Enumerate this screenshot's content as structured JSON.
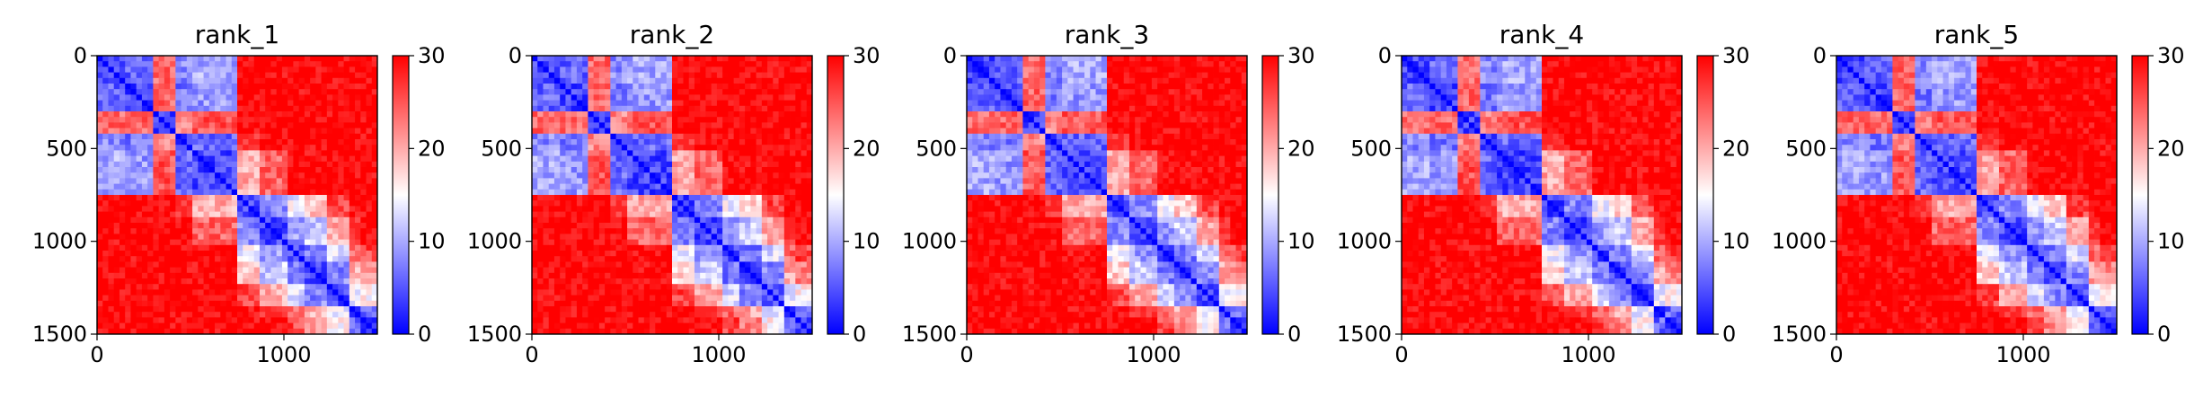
{
  "chart_data": [
    {
      "type": "heatmap",
      "title": "rank_1",
      "xlabel": "",
      "ylabel": "",
      "xlim": [
        0,
        1500
      ],
      "ylim": [
        1500,
        0
      ],
      "x_ticks": [
        "0",
        "1000"
      ],
      "y_ticks": [
        "0",
        "500",
        "1000",
        "1500"
      ],
      "colorbar": {
        "colormap": "bwr",
        "range": [
          0,
          30
        ],
        "ticks": [
          "0",
          "10",
          "20",
          "30"
        ]
      },
      "blocks": [
        [
          0,
          140
        ],
        [
          140,
          290
        ],
        [
          290,
          420
        ],
        [
          420,
          520
        ],
        [
          520,
          740
        ],
        [
          740,
          880
        ],
        [
          880,
          1010
        ],
        [
          1010,
          1120
        ],
        [
          1120,
          1230
        ],
        [
          1230,
          1340
        ],
        [
          1340,
          1420
        ],
        [
          1420,
          1500
        ]
      ],
      "block_distance_matrix": [
        [
          4,
          6,
          24,
          8,
          10,
          30,
          30,
          30,
          30,
          30,
          30,
          30
        ],
        [
          6,
          4,
          24,
          7,
          9,
          30,
          30,
          30,
          30,
          30,
          30,
          30
        ],
        [
          24,
          24,
          4,
          22,
          25,
          30,
          30,
          30,
          30,
          30,
          30,
          30
        ],
        [
          8,
          7,
          22,
          4,
          6,
          28,
          30,
          30,
          30,
          30,
          30,
          30
        ],
        [
          10,
          9,
          25,
          6,
          4,
          20,
          24,
          30,
          30,
          30,
          30,
          30
        ],
        [
          30,
          30,
          30,
          28,
          20,
          4,
          8,
          14,
          18,
          26,
          30,
          30
        ],
        [
          30,
          30,
          30,
          30,
          24,
          8,
          4,
          9,
          12,
          20,
          28,
          30
        ],
        [
          30,
          30,
          30,
          30,
          30,
          14,
          9,
          4,
          7,
          13,
          24,
          26
        ],
        [
          30,
          30,
          30,
          30,
          30,
          18,
          12,
          7,
          4,
          8,
          20,
          22
        ],
        [
          30,
          30,
          30,
          30,
          30,
          26,
          20,
          13,
          8,
          4,
          14,
          16
        ],
        [
          30,
          30,
          30,
          30,
          30,
          30,
          28,
          24,
          20,
          14,
          4,
          6
        ],
        [
          30,
          30,
          30,
          30,
          30,
          30,
          30,
          26,
          22,
          16,
          6,
          4
        ]
      ]
    },
    {
      "type": "heatmap",
      "title": "rank_2",
      "xlabel": "",
      "ylabel": "",
      "xlim": [
        0,
        1500
      ],
      "ylim": [
        1500,
        0
      ],
      "x_ticks": [
        "0",
        "1000"
      ],
      "y_ticks": [
        "0",
        "500",
        "1000",
        "1500"
      ],
      "colorbar": {
        "colormap": "bwr",
        "range": [
          0,
          30
        ],
        "ticks": [
          "0",
          "10",
          "20",
          "30"
        ]
      },
      "blocks": [
        [
          0,
          140
        ],
        [
          140,
          290
        ],
        [
          290,
          420
        ],
        [
          420,
          520
        ],
        [
          520,
          740
        ],
        [
          740,
          880
        ],
        [
          880,
          1010
        ],
        [
          1010,
          1120
        ],
        [
          1120,
          1230
        ],
        [
          1230,
          1340
        ],
        [
          1340,
          1420
        ],
        [
          1420,
          1500
        ]
      ],
      "block_distance_matrix": [
        [
          4,
          6,
          24,
          8,
          10,
          30,
          30,
          30,
          30,
          30,
          30,
          30
        ],
        [
          6,
          4,
          24,
          7,
          9,
          30,
          30,
          30,
          30,
          30,
          30,
          30
        ],
        [
          24,
          24,
          4,
          22,
          25,
          30,
          30,
          30,
          30,
          30,
          30,
          30
        ],
        [
          8,
          7,
          22,
          4,
          6,
          28,
          30,
          30,
          30,
          30,
          30,
          30
        ],
        [
          10,
          9,
          25,
          6,
          4,
          20,
          24,
          30,
          30,
          30,
          30,
          30
        ],
        [
          30,
          30,
          30,
          28,
          20,
          4,
          8,
          14,
          18,
          26,
          30,
          30
        ],
        [
          30,
          30,
          30,
          30,
          24,
          8,
          4,
          9,
          12,
          20,
          28,
          30
        ],
        [
          30,
          30,
          30,
          30,
          30,
          14,
          9,
          4,
          7,
          13,
          24,
          26
        ],
        [
          30,
          30,
          30,
          30,
          30,
          18,
          12,
          7,
          4,
          8,
          20,
          22
        ],
        [
          30,
          30,
          30,
          30,
          30,
          26,
          20,
          13,
          8,
          4,
          14,
          16
        ],
        [
          30,
          30,
          30,
          30,
          30,
          30,
          28,
          24,
          20,
          14,
          4,
          6
        ],
        [
          30,
          30,
          30,
          30,
          30,
          30,
          30,
          26,
          22,
          16,
          6,
          4
        ]
      ]
    },
    {
      "type": "heatmap",
      "title": "rank_3",
      "xlabel": "",
      "ylabel": "",
      "xlim": [
        0,
        1500
      ],
      "ylim": [
        1500,
        0
      ],
      "x_ticks": [
        "0",
        "1000"
      ],
      "y_ticks": [
        "0",
        "500",
        "1000",
        "1500"
      ],
      "colorbar": {
        "colormap": "bwr",
        "range": [
          0,
          30
        ],
        "ticks": [
          "0",
          "10",
          "20",
          "30"
        ]
      },
      "blocks": [
        [
          0,
          140
        ],
        [
          140,
          290
        ],
        [
          290,
          420
        ],
        [
          420,
          520
        ],
        [
          520,
          740
        ],
        [
          740,
          880
        ],
        [
          880,
          1010
        ],
        [
          1010,
          1120
        ],
        [
          1120,
          1230
        ],
        [
          1230,
          1340
        ],
        [
          1340,
          1420
        ],
        [
          1420,
          1500
        ]
      ],
      "block_distance_matrix": [
        [
          4,
          6,
          24,
          8,
          10,
          30,
          30,
          30,
          30,
          30,
          30,
          30
        ],
        [
          6,
          4,
          24,
          7,
          9,
          30,
          30,
          30,
          30,
          30,
          30,
          30
        ],
        [
          24,
          24,
          4,
          22,
          25,
          30,
          30,
          30,
          30,
          30,
          30,
          30
        ],
        [
          8,
          7,
          22,
          4,
          6,
          28,
          30,
          30,
          30,
          30,
          30,
          30
        ],
        [
          10,
          9,
          25,
          6,
          4,
          20,
          24,
          30,
          30,
          30,
          30,
          30
        ],
        [
          30,
          30,
          30,
          28,
          20,
          4,
          8,
          14,
          18,
          26,
          30,
          30
        ],
        [
          30,
          30,
          30,
          30,
          24,
          8,
          4,
          9,
          12,
          20,
          28,
          30
        ],
        [
          30,
          30,
          30,
          30,
          30,
          14,
          9,
          4,
          7,
          13,
          24,
          26
        ],
        [
          30,
          30,
          30,
          30,
          30,
          18,
          12,
          7,
          4,
          8,
          20,
          22
        ],
        [
          30,
          30,
          30,
          30,
          30,
          26,
          20,
          13,
          8,
          4,
          14,
          16
        ],
        [
          30,
          30,
          30,
          30,
          30,
          30,
          28,
          24,
          20,
          14,
          4,
          6
        ],
        [
          30,
          30,
          30,
          30,
          30,
          30,
          30,
          26,
          22,
          16,
          6,
          4
        ]
      ]
    },
    {
      "type": "heatmap",
      "title": "rank_4",
      "xlabel": "",
      "ylabel": "",
      "xlim": [
        0,
        1500
      ],
      "ylim": [
        1500,
        0
      ],
      "x_ticks": [
        "0",
        "1000"
      ],
      "y_ticks": [
        "0",
        "500",
        "1000",
        "1500"
      ],
      "colorbar": {
        "colormap": "bwr",
        "range": [
          0,
          30
        ],
        "ticks": [
          "0",
          "10",
          "20",
          "30"
        ]
      },
      "blocks": [
        [
          0,
          140
        ],
        [
          140,
          290
        ],
        [
          290,
          420
        ],
        [
          420,
          520
        ],
        [
          520,
          740
        ],
        [
          740,
          880
        ],
        [
          880,
          1010
        ],
        [
          1010,
          1120
        ],
        [
          1120,
          1230
        ],
        [
          1230,
          1340
        ],
        [
          1340,
          1420
        ],
        [
          1420,
          1500
        ]
      ],
      "block_distance_matrix": [
        [
          4,
          6,
          24,
          8,
          10,
          30,
          30,
          30,
          30,
          30,
          30,
          30
        ],
        [
          6,
          4,
          24,
          7,
          9,
          30,
          30,
          30,
          30,
          30,
          30,
          30
        ],
        [
          24,
          24,
          4,
          22,
          25,
          30,
          30,
          30,
          30,
          30,
          30,
          30
        ],
        [
          8,
          7,
          22,
          4,
          6,
          28,
          30,
          30,
          30,
          30,
          30,
          30
        ],
        [
          10,
          9,
          25,
          6,
          4,
          20,
          24,
          30,
          30,
          30,
          30,
          30
        ],
        [
          30,
          30,
          30,
          28,
          20,
          4,
          8,
          14,
          18,
          26,
          30,
          30
        ],
        [
          30,
          30,
          30,
          30,
          24,
          8,
          4,
          9,
          12,
          20,
          28,
          30
        ],
        [
          30,
          30,
          30,
          30,
          30,
          14,
          9,
          4,
          7,
          13,
          24,
          26
        ],
        [
          30,
          30,
          30,
          30,
          30,
          18,
          12,
          7,
          4,
          8,
          20,
          22
        ],
        [
          30,
          30,
          30,
          30,
          30,
          26,
          20,
          13,
          8,
          4,
          14,
          16
        ],
        [
          30,
          30,
          30,
          30,
          30,
          30,
          28,
          24,
          20,
          14,
          4,
          6
        ],
        [
          30,
          30,
          30,
          30,
          30,
          30,
          30,
          26,
          22,
          16,
          6,
          4
        ]
      ]
    },
    {
      "type": "heatmap",
      "title": "rank_5",
      "xlabel": "",
      "ylabel": "",
      "xlim": [
        0,
        1500
      ],
      "ylim": [
        1500,
        0
      ],
      "x_ticks": [
        "0",
        "1000"
      ],
      "y_ticks": [
        "0",
        "500",
        "1000",
        "1500"
      ],
      "colorbar": {
        "colormap": "bwr",
        "range": [
          0,
          30
        ],
        "ticks": [
          "0",
          "10",
          "20",
          "30"
        ]
      },
      "blocks": [
        [
          0,
          140
        ],
        [
          140,
          290
        ],
        [
          290,
          420
        ],
        [
          420,
          520
        ],
        [
          520,
          740
        ],
        [
          740,
          880
        ],
        [
          880,
          1010
        ],
        [
          1010,
          1120
        ],
        [
          1120,
          1230
        ],
        [
          1230,
          1340
        ],
        [
          1340,
          1420
        ],
        [
          1420,
          1500
        ]
      ],
      "block_distance_matrix": [
        [
          4,
          6,
          24,
          8,
          10,
          30,
          30,
          30,
          30,
          30,
          30,
          30
        ],
        [
          6,
          4,
          24,
          7,
          9,
          30,
          30,
          30,
          30,
          30,
          30,
          30
        ],
        [
          24,
          24,
          4,
          22,
          25,
          30,
          30,
          30,
          30,
          30,
          30,
          30
        ],
        [
          8,
          7,
          22,
          4,
          6,
          28,
          30,
          30,
          30,
          30,
          30,
          30
        ],
        [
          10,
          9,
          25,
          6,
          4,
          20,
          24,
          30,
          30,
          30,
          30,
          30
        ],
        [
          30,
          30,
          30,
          28,
          20,
          4,
          8,
          14,
          18,
          26,
          30,
          30
        ],
        [
          30,
          30,
          30,
          30,
          24,
          8,
          4,
          9,
          12,
          20,
          28,
          30
        ],
        [
          30,
          30,
          30,
          30,
          30,
          14,
          9,
          4,
          7,
          13,
          24,
          26
        ],
        [
          30,
          30,
          30,
          30,
          30,
          18,
          12,
          7,
          4,
          8,
          20,
          22
        ],
        [
          30,
          30,
          30,
          30,
          30,
          26,
          20,
          13,
          8,
          4,
          14,
          16
        ],
        [
          30,
          30,
          30,
          30,
          30,
          30,
          28,
          24,
          20,
          14,
          4,
          6
        ],
        [
          30,
          30,
          30,
          30,
          30,
          30,
          30,
          26,
          22,
          16,
          6,
          4
        ]
      ]
    }
  ]
}
